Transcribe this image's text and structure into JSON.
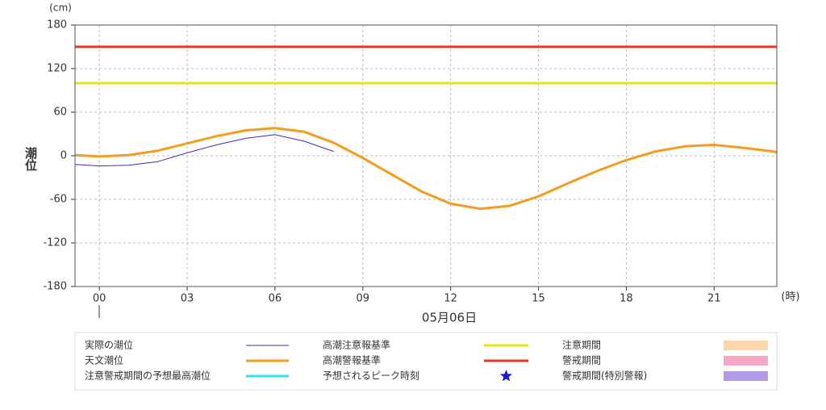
{
  "chart_data": {
    "type": "line",
    "y_unit": "(cm)",
    "x_unit": "(時)",
    "y_label": "潮位",
    "date_label": "05月06日",
    "xlim": [
      -0.83,
      23.14
    ],
    "ylim": [
      -180,
      180
    ],
    "yticks": [
      180,
      120,
      60,
      0,
      -60,
      -120,
      -180
    ],
    "xticks": [
      {
        "value": 0,
        "label": "00"
      },
      {
        "value": 3,
        "label": "03"
      },
      {
        "value": 6,
        "label": "06"
      },
      {
        "value": 9,
        "label": "09"
      },
      12,
      15,
      18,
      21
    ],
    "grid": true,
    "x": [
      -0.83,
      0,
      1,
      2,
      3,
      4,
      5,
      6,
      7,
      8,
      9,
      10,
      11,
      12,
      13,
      14,
      15,
      16,
      17,
      18,
      19,
      20,
      21,
      22,
      23,
      23.14
    ],
    "series": [
      {
        "name": "実際の潮位",
        "color": "#4b2aa8",
        "width": 1,
        "values": [
          -12,
          -14,
          -13,
          -8,
          4,
          15,
          24,
          29,
          20,
          6,
          null,
          null,
          null,
          null,
          null,
          null,
          null,
          null,
          null,
          null,
          null,
          null,
          null,
          null,
          null,
          null
        ]
      },
      {
        "name": "天文潮位",
        "color": "#f39c1e",
        "width": 3,
        "values": [
          1,
          -1,
          1,
          7,
          17,
          27,
          35,
          38,
          33,
          18,
          -3,
          -26,
          -49,
          -66,
          -73,
          -69,
          -56,
          -38,
          -21,
          -6,
          6,
          13,
          15,
          11,
          6,
          5
        ]
      }
    ],
    "reference_lines": [
      {
        "name": "高潮注意報基準",
        "value": 100,
        "color": "#e8e01a"
      },
      {
        "name": "高潮警報基準",
        "value": 150,
        "color": "#e8391a"
      }
    ],
    "legend_items": [
      {
        "name": "注意警戒期間の予想最高潮位",
        "color": "#33e0f0",
        "symbol": "line"
      },
      {
        "name": "予想されるピーク時刻",
        "color": "#1a1ad0",
        "symbol": "star"
      },
      {
        "name": "注意期間",
        "color": "#fcd5a8",
        "symbol": "box"
      },
      {
        "name": "警戒期間",
        "color": "#f7a8c8",
        "symbol": "box"
      },
      {
        "name": "警戒期間(特別警報)",
        "color": "#b39ae6",
        "symbol": "box"
      }
    ]
  }
}
